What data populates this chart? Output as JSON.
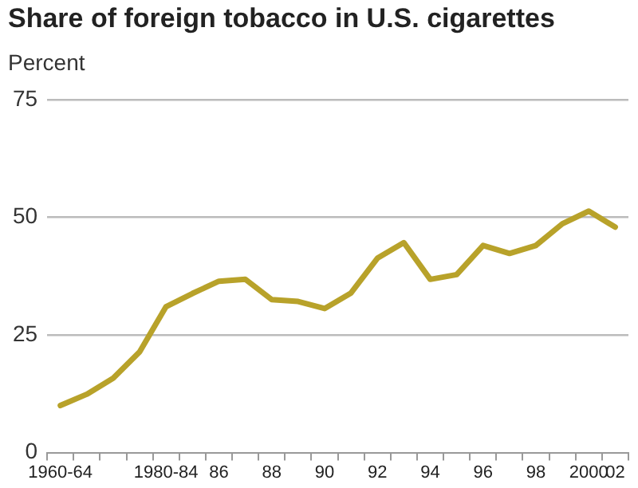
{
  "chart_data": {
    "type": "line",
    "title": "Share of foreign tobacco in U.S. cigarettes",
    "ylabel": "Percent",
    "categories": [
      "1960-64",
      null,
      null,
      null,
      "1980-84",
      null,
      "86",
      null,
      "88",
      null,
      "90",
      null,
      "92",
      null,
      "94",
      null,
      "96",
      null,
      "98",
      null,
      "2000",
      "02"
    ],
    "series": [
      {
        "color": "#b8a22a",
        "values": [
          10,
          12.4,
          15.8,
          21.4,
          31,
          33.8,
          36.4,
          36.8,
          32.5,
          32.1,
          30.6,
          33.9,
          41.3,
          44.6,
          36.8,
          37.8,
          44,
          42.3,
          44,
          48.6,
          51.3,
          47.9
        ]
      }
    ],
    "ylim": [
      0,
      75
    ],
    "yticks": [
      0,
      25,
      50,
      75
    ],
    "grid": "y",
    "legend": false,
    "marker": "none",
    "line_style": "solid"
  }
}
